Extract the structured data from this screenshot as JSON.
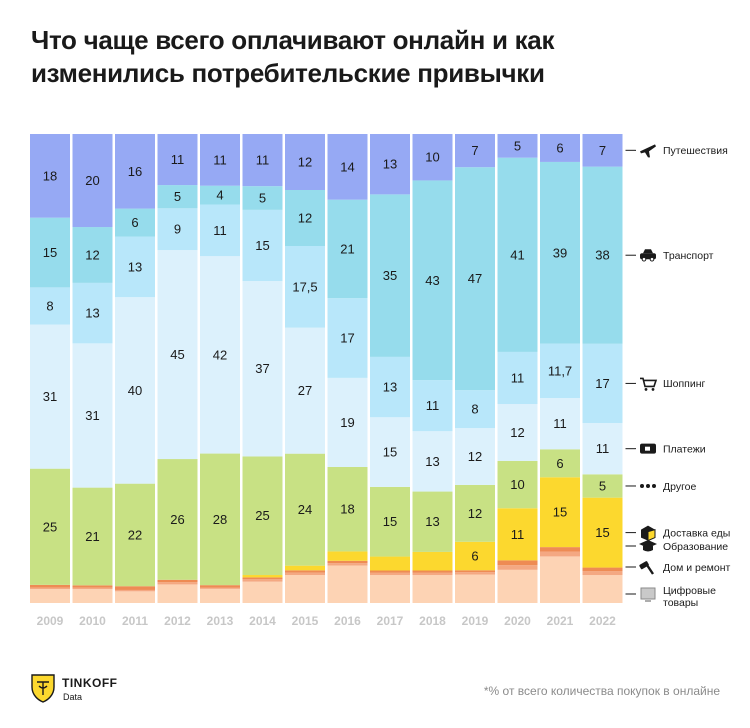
{
  "title": "Что чаще всего оплачивают онлайн и как изменились потребительские привычки",
  "footnote": "*% от всего количества покупок в онлайне",
  "logo": {
    "brand": "TINKOFF",
    "sub": "Data",
    "icon": "tinkoff-emblem-icon"
  },
  "colors": {
    "travel": "#96a9f4",
    "transport": "#96dcec",
    "shopping": "#b8e7fa",
    "payments": "#dcf1fc",
    "other": "#c8e184",
    "food": "#fcd82e",
    "education": "#ee8b54",
    "home": "#f4a882",
    "digital": "#fdd3b4",
    "axis_label": "#c7c7c7",
    "text": "#1a1a1a"
  },
  "chart_data": {
    "type": "bar",
    "stacked": true,
    "normalized": true,
    "unit": "%",
    "categories": [
      "2009",
      "2010",
      "2011",
      "2012",
      "2013",
      "2014",
      "2015",
      "2016",
      "2017",
      "2018",
      "2019",
      "2020",
      "2021",
      "2022"
    ],
    "ylim": [
      0,
      100
    ],
    "series": [
      {
        "key": "digital",
        "name": "Цифровые товары",
        "icon": "monitor-icon",
        "values": [
          3,
          3,
          2.5,
          4,
          3,
          4.5,
          6,
          8,
          6,
          6,
          6,
          7,
          10,
          6
        ]
      },
      {
        "key": "home",
        "name": "Дом и ремонт",
        "icon": "hammer-icon",
        "values": [
          0.3,
          0.3,
          0.3,
          0.5,
          0.3,
          0.5,
          0.5,
          0.5,
          0.5,
          0.5,
          0.5,
          1,
          1,
          0.8
        ]
      },
      {
        "key": "education",
        "name": "Образование",
        "icon": "graduation-cap-icon",
        "values": [
          0.6,
          0.5,
          0.8,
          0.5,
          0.5,
          0.4,
          0.5,
          0.5,
          0.5,
          0.5,
          0.4,
          1,
          1,
          0.8
        ]
      },
      {
        "key": "food",
        "name": "Доставка еды",
        "icon": "food-box-icon",
        "values": [
          0,
          0,
          0,
          0,
          0,
          0.5,
          1,
          2,
          3,
          4,
          6,
          11,
          15,
          15
        ]
      },
      {
        "key": "other",
        "name": "Другое",
        "icon": "dots-icon",
        "values": [
          25,
          21,
          22,
          26,
          28,
          25,
          24,
          18,
          15,
          13,
          12,
          10,
          6,
          5
        ]
      },
      {
        "key": "payments",
        "name": "Платежи",
        "icon": "card-icon",
        "values": [
          31,
          31,
          40,
          45,
          42,
          37,
          27,
          19,
          15,
          13,
          12,
          12,
          11,
          11
        ]
      },
      {
        "key": "shopping",
        "name": "Шоппинг",
        "icon": "cart-icon",
        "values": [
          8,
          13,
          13,
          9,
          11,
          15,
          17.5,
          17,
          13,
          11,
          8,
          11,
          11.7,
          17
        ]
      },
      {
        "key": "transport",
        "name": "Транспорт",
        "icon": "car-icon",
        "values": [
          15,
          12,
          6,
          5,
          4,
          5,
          12,
          21,
          35,
          43,
          47,
          41,
          39,
          38
        ]
      },
      {
        "key": "travel",
        "name": "Путешествия",
        "icon": "airplane-icon",
        "values": [
          18,
          20,
          16,
          11,
          11,
          11,
          12,
          14,
          13,
          10,
          7,
          5,
          6,
          7
        ]
      }
    ],
    "data_labels": {
      "travel": [
        "18",
        "20",
        "16",
        "11",
        "11",
        "11",
        "12",
        "14",
        "13",
        "10",
        "7",
        "5",
        "6",
        "7"
      ],
      "transport": [
        "15",
        "12",
        "6",
        "5",
        "4",
        "5",
        "12",
        "21",
        "35",
        "43",
        "47",
        "41",
        "39",
        "38"
      ],
      "shopping": [
        "8",
        "13",
        "13",
        "9",
        "11",
        "15",
        "17,5",
        "17",
        "13",
        "11",
        "8",
        "11",
        "11,7",
        "17"
      ],
      "payments": [
        "31",
        "31",
        "40",
        "45",
        "42",
        "37",
        "27",
        "19",
        "15",
        "13",
        "12",
        "12",
        "11",
        "11"
      ],
      "other": [
        "25",
        "21",
        "22",
        "26",
        "28",
        "25",
        "24",
        "18",
        "15",
        "13",
        "12",
        "10",
        "6",
        "5"
      ],
      "food": [
        "",
        "",
        "",
        "",
        "",
        "",
        "",
        "",
        "",
        "",
        "6",
        "11",
        "15",
        "15"
      ]
    },
    "legend": [
      {
        "key": "travel",
        "label": "Путешествия"
      },
      {
        "key": "transport",
        "label": "Транспорт"
      },
      {
        "key": "shopping",
        "label": "Шоппинг"
      },
      {
        "key": "payments",
        "label": "Платежи"
      },
      {
        "key": "other",
        "label": "Другое"
      },
      {
        "key": "food",
        "label": "Доставка еды"
      },
      {
        "key": "education",
        "label": "Образование"
      },
      {
        "key": "home",
        "label": "Дом и ремонт"
      },
      {
        "key": "digital",
        "label": "Цифровые товары"
      }
    ],
    "legend_position": "right"
  }
}
